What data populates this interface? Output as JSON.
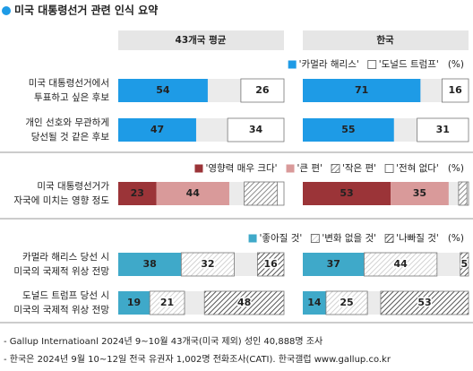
{
  "title": "미국 대통령선거 관련 인식 요약",
  "columns": [
    "43개국 평균",
    "한국"
  ],
  "notes": [
    "- Gallup Internatioanl 2024년 9~10월 43개국(미국 제외) 성인 40,888명 조사",
    "- 한국은 2024년 9월 10~12일 전국 유권자 1,002명 전화조사(CATI). 한국갤럽 www.gallup.co.kr"
  ],
  "chart_data": [
    {
      "type": "stacked-bar",
      "unit": "(%)",
      "xlim": [
        0,
        100
      ],
      "categories": [
        [
          "미국 대통령선거에서",
          "투표하고 싶은 후보"
        ],
        [
          "개인 선호와 무관하게",
          "당선될 것 같은 후보"
        ]
      ],
      "series": [
        {
          "name": "'카멀라 해리스'",
          "color": "#1e9be6",
          "style": "fill",
          "align": "start",
          "show_values": true,
          "values": [
            [
              54,
              71
            ],
            [
              47,
              55
            ]
          ]
        },
        {
          "name": "'도널드 트럼프'",
          "color": "#ffffff",
          "style": "box",
          "align": "end",
          "show_values": true,
          "values": [
            [
              26,
              16
            ],
            [
              34,
              31
            ]
          ]
        }
      ]
    },
    {
      "type": "stacked-bar",
      "unit": "(%)",
      "xlim": [
        0,
        100
      ],
      "categories": [
        [
          "미국 대통령선거가",
          "자국에 미치는 영향 정도"
        ]
      ],
      "series": [
        {
          "name": "'영향력 매우 크다'",
          "color": "#9b3438",
          "style": "fill",
          "align": "start",
          "show_values": true,
          "values": [
            [
              23,
              53
            ]
          ]
        },
        {
          "name": "'큰 편'",
          "color": "#d99a9a",
          "style": "fill",
          "align": "start",
          "show_values": true,
          "values": [
            [
              44,
              35
            ]
          ]
        },
        {
          "name": "'작은 편'",
          "color": "#8c8c8c",
          "style": "hatch",
          "align": "end",
          "show_values": false,
          "values": [
            [
              20,
              5
            ]
          ]
        },
        {
          "name": "'전혀 없다'",
          "color": "#ffffff",
          "style": "box",
          "align": "end",
          "show_values": false,
          "values": [
            [
              4,
              1
            ]
          ]
        }
      ]
    },
    {
      "type": "stacked-bar",
      "unit": "(%)",
      "xlim": [
        0,
        100
      ],
      "categories": [
        [
          "카멀라 해리스 당선 시",
          "미국의 국제적 위상 전망"
        ],
        [
          "도널드 트럼프 당선 시",
          "미국의 국제적 위상 전망"
        ]
      ],
      "series": [
        {
          "name": "'좋아질 것'",
          "color": "#3fa9c9",
          "style": "fill",
          "align": "start",
          "show_values": true,
          "values": [
            [
              38,
              37
            ],
            [
              19,
              14
            ]
          ]
        },
        {
          "name": "'변화 없을 것'",
          "color": "#b0b0b0",
          "style": "hatch",
          "align": "start",
          "show_values": true,
          "values": [
            [
              32,
              44
            ],
            [
              21,
              25
            ]
          ]
        },
        {
          "name": "'나빠질 것'",
          "color": "#555555",
          "style": "hatch",
          "align": "end",
          "show_values": true,
          "values": [
            [
              16,
              5
            ],
            [
              48,
              53
            ]
          ]
        }
      ]
    }
  ]
}
